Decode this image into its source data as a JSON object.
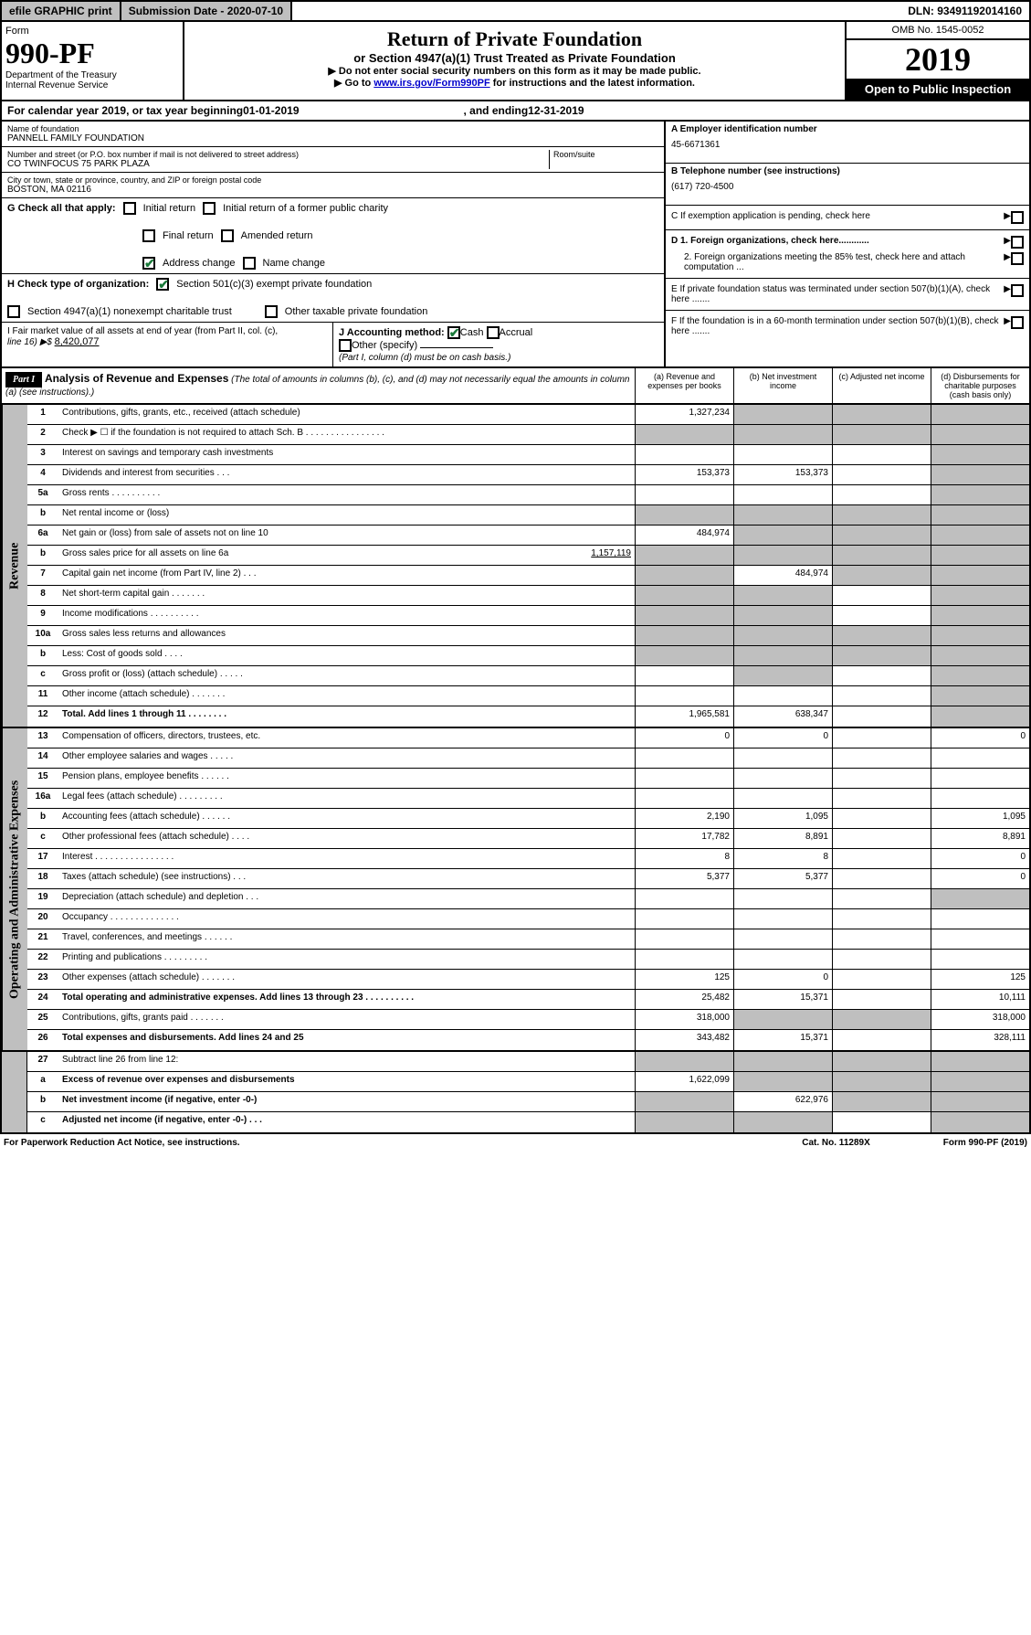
{
  "topbar": {
    "efile": "efile GRAPHIC print",
    "submission": "Submission Date - 2020-07-10",
    "dln": "DLN: 93491192014160"
  },
  "header": {
    "form_label": "Form",
    "form_num": "990-PF",
    "dept": "Department of the Treasury",
    "irs": "Internal Revenue Service",
    "title": "Return of Private Foundation",
    "subtitle": "or Section 4947(a)(1) Trust Treated as Private Foundation",
    "inst1": "▶ Do not enter social security numbers on this form as it may be made public.",
    "inst2_pre": "▶ Go to ",
    "inst2_link": "www.irs.gov/Form990PF",
    "inst2_post": " for instructions and the latest information.",
    "omb": "OMB No. 1545-0052",
    "year": "2019",
    "open": "Open to Public Inspection"
  },
  "calendar": {
    "pre": "For calendar year 2019, or tax year beginning ",
    "begin": "01-01-2019",
    "mid": ", and ending ",
    "end": "12-31-2019"
  },
  "info": {
    "name_label": "Name of foundation",
    "name": "PANNELL FAMILY FOUNDATION",
    "addr_label": "Number and street (or P.O. box number if mail is not delivered to street address)",
    "addr": "CO TWINFOCUS 75 PARK PLAZA",
    "room_label": "Room/suite",
    "city_label": "City or town, state or province, country, and ZIP or foreign postal code",
    "city": "BOSTON, MA  02116",
    "ein_label": "A Employer identification number",
    "ein": "45-6671361",
    "phone_label": "B Telephone number (see instructions)",
    "phone": "(617) 720-4500",
    "c_label": "C  If exemption application is pending, check here",
    "d1": "D 1. Foreign organizations, check here............",
    "d2": "2. Foreign organizations meeting the 85% test, check here and attach computation ...",
    "e_label": "E  If private foundation status was terminated under section 507(b)(1)(A), check here .......",
    "f_label": "F  If the foundation is in a 60-month termination under section 507(b)(1)(B), check here ......."
  },
  "g": {
    "label": "G Check all that apply:",
    "initial": "Initial return",
    "initial_former": "Initial return of a former public charity",
    "final": "Final return",
    "amended": "Amended return",
    "address": "Address change",
    "name": "Name change"
  },
  "h": {
    "label": "H Check type of organization:",
    "s501": "Section 501(c)(3) exempt private foundation",
    "s4947": "Section 4947(a)(1) nonexempt charitable trust",
    "other": "Other taxable private foundation"
  },
  "i": {
    "label": "I Fair market value of all assets at end of year (from Part II, col. (c),",
    "line": "line 16) ▶$ ",
    "val": "8,420,077"
  },
  "j": {
    "label": "J Accounting method:",
    "cash": "Cash",
    "accrual": "Accrual",
    "other": "Other (specify)",
    "note": "(Part I, column (d) must be on cash basis.)"
  },
  "part1": {
    "badge": "Part I",
    "title": "Analysis of Revenue and Expenses",
    "note": " (The total of amounts in columns (b), (c), and (d) may not necessarily equal the amounts in column (a) (see instructions).)",
    "col_a": "(a) Revenue and expenses per books",
    "col_b": "(b) Net investment income",
    "col_c": "(c) Adjusted net income",
    "col_d": "(d) Disbursements for charitable purposes (cash basis only)"
  },
  "side": {
    "revenue": "Revenue",
    "expenses": "Operating and Administrative Expenses"
  },
  "rows": {
    "r1": {
      "n": "1",
      "d": "Contributions, gifts, grants, etc., received (attach schedule)",
      "a": "1,327,234"
    },
    "r2": {
      "n": "2",
      "d": "Check ▶ ☐ if the foundation is not required to attach Sch. B  .  .  .  .  .  .  .  .  .  .  .  .  .  .  .  ."
    },
    "r3": {
      "n": "3",
      "d": "Interest on savings and temporary cash investments"
    },
    "r4": {
      "n": "4",
      "d": "Dividends and interest from securities   .   .   .",
      "a": "153,373",
      "b": "153,373"
    },
    "r5a": {
      "n": "5a",
      "d": "Gross rents   .   .   .   .   .   .   .   .   .   ."
    },
    "r5b": {
      "n": "b",
      "d": "Net rental income or (loss)  "
    },
    "r6a": {
      "n": "6a",
      "d": "Net gain or (loss) from sale of assets not on line 10",
      "a": "484,974"
    },
    "r6b": {
      "n": "b",
      "d": "Gross sales price for all assets on line 6a ",
      "v": "1,157,119"
    },
    "r7": {
      "n": "7",
      "d": "Capital gain net income (from Part IV, line 2)   .   .   .",
      "b": "484,974"
    },
    "r8": {
      "n": "8",
      "d": "Net short-term capital gain   .   .   .   .   .   .   ."
    },
    "r9": {
      "n": "9",
      "d": "Income modifications   .   .   .   .   .   .   .   .   .   ."
    },
    "r10a": {
      "n": "10a",
      "d": "Gross sales less returns and allowances  "
    },
    "r10b": {
      "n": "b",
      "d": "Less: Cost of goods sold   .   .   .   .  "
    },
    "r10c": {
      "n": "c",
      "d": "Gross profit or (loss) (attach schedule)   .   .   .   .   ."
    },
    "r11": {
      "n": "11",
      "d": "Other income (attach schedule)   .   .   .   .   .   .   ."
    },
    "r12": {
      "n": "12",
      "d": "Total. Add lines 1 through 11   .   .   .   .   .   .   .   .",
      "a": "1,965,581",
      "b": "638,347"
    },
    "r13": {
      "n": "13",
      "d": "Compensation of officers, directors, trustees, etc.",
      "a": "0",
      "b": "0",
      "dd": "0"
    },
    "r14": {
      "n": "14",
      "d": "Other employee salaries and wages   .   .   .   .   ."
    },
    "r15": {
      "n": "15",
      "d": "Pension plans, employee benefits   .   .   .   .   .   ."
    },
    "r16a": {
      "n": "16a",
      "d": "Legal fees (attach schedule)   .   .   .   .   .   .   .   .   ."
    },
    "r16b": {
      "n": "b",
      "d": "Accounting fees (attach schedule)   .   .   .   .   .   .",
      "a": "2,190",
      "b": "1,095",
      "dd": "1,095"
    },
    "r16c": {
      "n": "c",
      "d": "Other professional fees (attach schedule)   .   .   .   .",
      "a": "17,782",
      "b": "8,891",
      "dd": "8,891"
    },
    "r17": {
      "n": "17",
      "d": "Interest   .   .   .   .   .   .   .   .   .   .   .   .   .   .   .   .",
      "a": "8",
      "b": "8",
      "dd": "0"
    },
    "r18": {
      "n": "18",
      "d": "Taxes (attach schedule) (see instructions)   .   .   .",
      "a": "5,377",
      "b": "5,377",
      "dd": "0"
    },
    "r19": {
      "n": "19",
      "d": "Depreciation (attach schedule) and depletion   .   .   ."
    },
    "r20": {
      "n": "20",
      "d": "Occupancy   .   .   .   .   .   .   .   .   .   .   .   .   .   ."
    },
    "r21": {
      "n": "21",
      "d": "Travel, conferences, and meetings   .   .   .   .   .   ."
    },
    "r22": {
      "n": "22",
      "d": "Printing and publications   .   .   .   .   .   .   .   .   ."
    },
    "r23": {
      "n": "23",
      "d": "Other expenses (attach schedule)   .   .   .   .   .   .   .",
      "a": "125",
      "b": "0",
      "dd": "125"
    },
    "r24": {
      "n": "24",
      "d": "Total operating and administrative expenses. Add lines 13 through 23   .   .   .   .   .   .   .   .   .   .",
      "a": "25,482",
      "b": "15,371",
      "dd": "10,111"
    },
    "r25": {
      "n": "25",
      "d": "Contributions, gifts, grants paid   .   .   .   .   .   .   .",
      "a": "318,000",
      "dd": "318,000"
    },
    "r26": {
      "n": "26",
      "d": "Total expenses and disbursements. Add lines 24 and 25",
      "a": "343,482",
      "b": "15,371",
      "dd": "328,111"
    },
    "r27": {
      "n": "27",
      "d": "Subtract line 26 from line 12:"
    },
    "r27a": {
      "n": "a",
      "d": "Excess of revenue over expenses and disbursements",
      "a": "1,622,099"
    },
    "r27b": {
      "n": "b",
      "d": "Net investment income (if negative, enter -0-)",
      "b": "622,976"
    },
    "r27c": {
      "n": "c",
      "d": "Adjusted net income (if negative, enter -0-)   .   .   ."
    }
  },
  "footer": {
    "left": "For Paperwork Reduction Act Notice, see instructions.",
    "cat": "Cat. No. 11289X",
    "form": "Form 990-PF (2019)"
  }
}
